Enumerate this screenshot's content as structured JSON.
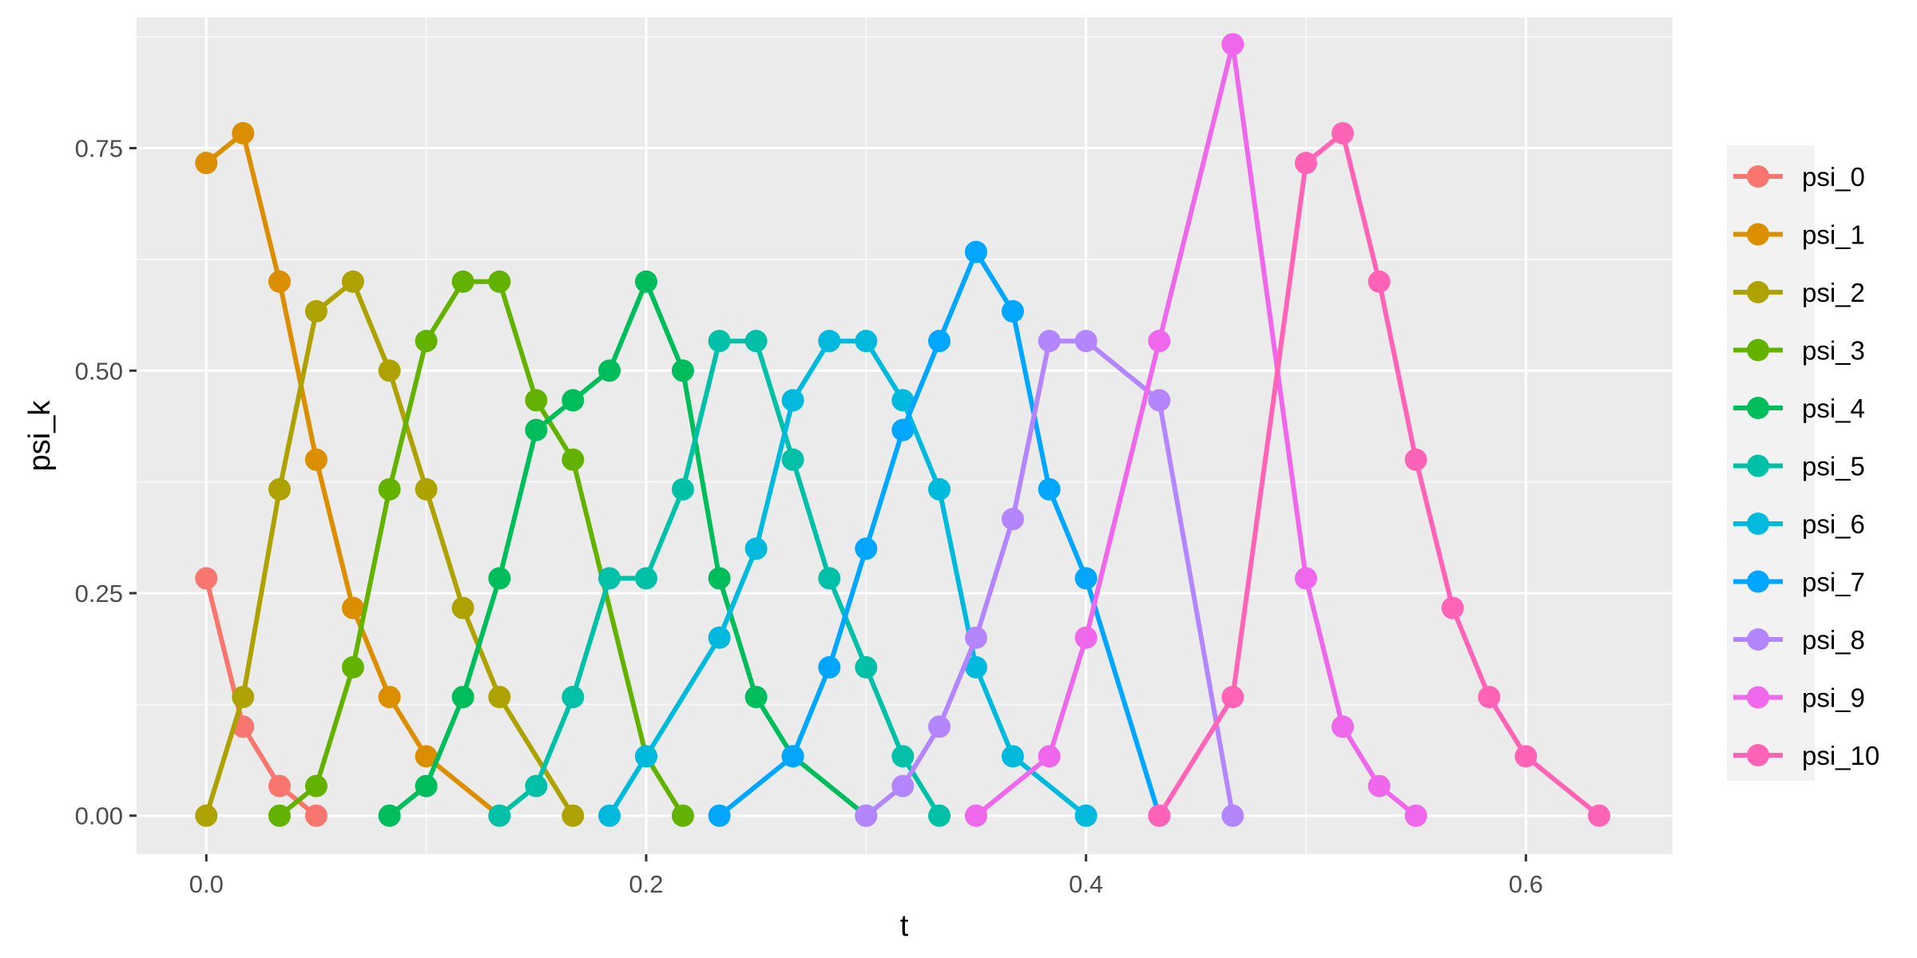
{
  "chart_data": {
    "type": "line",
    "xlabel": "t",
    "ylabel": "psi_k",
    "xlim": [
      -0.0317,
      0.6667
    ],
    "ylim": [
      -0.0433,
      0.8967
    ],
    "xticks": [
      0.0,
      0.2,
      0.4,
      0.6
    ],
    "xtick_labels": [
      "0.0",
      "0.2",
      "0.4",
      "0.6"
    ],
    "yticks": [
      0.0,
      0.25,
      0.5,
      0.75
    ],
    "ytick_labels": [
      "0.00",
      "0.25",
      "0.50",
      "0.75"
    ],
    "grid": true,
    "legend_position": "right",
    "markers": true,
    "series": [
      {
        "name": "psi_0",
        "color": "#F8766D",
        "points": [
          [
            0.0,
            0.2667
          ],
          [
            0.0167,
            0.1
          ],
          [
            0.0333,
            0.0333
          ],
          [
            0.05,
            0.0
          ]
        ]
      },
      {
        "name": "psi_1",
        "color": "#DB8E00",
        "points": [
          [
            0.0,
            0.7333
          ],
          [
            0.0167,
            0.7667
          ],
          [
            0.0333,
            0.6
          ],
          [
            0.05,
            0.4
          ],
          [
            0.0667,
            0.2333
          ],
          [
            0.0833,
            0.1333
          ],
          [
            0.1,
            0.0667
          ],
          [
            0.1333,
            0.0
          ]
        ]
      },
      {
        "name": "psi_2",
        "color": "#AEA200",
        "points": [
          [
            0.0,
            0.0
          ],
          [
            0.0167,
            0.1333
          ],
          [
            0.0333,
            0.3667
          ],
          [
            0.05,
            0.5667
          ],
          [
            0.0667,
            0.6
          ],
          [
            0.0833,
            0.5
          ],
          [
            0.1,
            0.3667
          ],
          [
            0.1167,
            0.2333
          ],
          [
            0.1333,
            0.1333
          ],
          [
            0.1667,
            0.0
          ]
        ]
      },
      {
        "name": "psi_3",
        "color": "#64B200",
        "points": [
          [
            0.0333,
            0.0
          ],
          [
            0.05,
            0.0333
          ],
          [
            0.0667,
            0.1667
          ],
          [
            0.0833,
            0.3667
          ],
          [
            0.1,
            0.5333
          ],
          [
            0.1167,
            0.6
          ],
          [
            0.1333,
            0.6
          ],
          [
            0.15,
            0.4667
          ],
          [
            0.1667,
            0.4
          ],
          [
            0.2,
            0.0667
          ],
          [
            0.2167,
            0.0
          ]
        ]
      },
      {
        "name": "psi_4",
        "color": "#00BD5C",
        "points": [
          [
            0.0833,
            0.0
          ],
          [
            0.1,
            0.0333
          ],
          [
            0.1167,
            0.1333
          ],
          [
            0.1333,
            0.2667
          ],
          [
            0.15,
            0.4333
          ],
          [
            0.1667,
            0.4667
          ],
          [
            0.1833,
            0.5
          ],
          [
            0.2,
            0.6
          ],
          [
            0.2167,
            0.5
          ],
          [
            0.2333,
            0.2667
          ],
          [
            0.25,
            0.1333
          ],
          [
            0.2667,
            0.0667
          ],
          [
            0.3,
            0.0
          ]
        ]
      },
      {
        "name": "psi_5",
        "color": "#00C1A7",
        "points": [
          [
            0.1333,
            0.0
          ],
          [
            0.15,
            0.0333
          ],
          [
            0.1667,
            0.1333
          ],
          [
            0.1833,
            0.2667
          ],
          [
            0.2,
            0.2667
          ],
          [
            0.2167,
            0.3667
          ],
          [
            0.2333,
            0.5333
          ],
          [
            0.25,
            0.5333
          ],
          [
            0.2667,
            0.4
          ],
          [
            0.2833,
            0.2667
          ],
          [
            0.3,
            0.1667
          ],
          [
            0.3167,
            0.0667
          ],
          [
            0.3333,
            0.0
          ]
        ]
      },
      {
        "name": "psi_6",
        "color": "#00BADE",
        "points": [
          [
            0.1833,
            0.0
          ],
          [
            0.2,
            0.0667
          ],
          [
            0.2333,
            0.2
          ],
          [
            0.25,
            0.3
          ],
          [
            0.2667,
            0.4667
          ],
          [
            0.2833,
            0.5333
          ],
          [
            0.3,
            0.5333
          ],
          [
            0.3167,
            0.4667
          ],
          [
            0.3333,
            0.3667
          ],
          [
            0.35,
            0.1667
          ],
          [
            0.3667,
            0.0667
          ],
          [
            0.4,
            0.0
          ]
        ]
      },
      {
        "name": "psi_7",
        "color": "#00A6FF",
        "points": [
          [
            0.2333,
            0.0
          ],
          [
            0.2667,
            0.0667
          ],
          [
            0.2833,
            0.1667
          ],
          [
            0.3,
            0.3
          ],
          [
            0.3167,
            0.4333
          ],
          [
            0.3333,
            0.5333
          ],
          [
            0.35,
            0.6333
          ],
          [
            0.3667,
            0.5667
          ],
          [
            0.3833,
            0.3667
          ],
          [
            0.4,
            0.2667
          ],
          [
            0.4333,
            0.0
          ]
        ]
      },
      {
        "name": "psi_8",
        "color": "#B385FF",
        "points": [
          [
            0.3,
            0.0
          ],
          [
            0.3167,
            0.0333
          ],
          [
            0.3333,
            0.1
          ],
          [
            0.35,
            0.2
          ],
          [
            0.3667,
            0.3333
          ],
          [
            0.3833,
            0.5333
          ],
          [
            0.4,
            0.5333
          ],
          [
            0.4333,
            0.4667
          ],
          [
            0.4667,
            0.0
          ]
        ]
      },
      {
        "name": "psi_9",
        "color": "#EF67EB",
        "points": [
          [
            0.35,
            0.0
          ],
          [
            0.3833,
            0.0667
          ],
          [
            0.4,
            0.2
          ],
          [
            0.4333,
            0.5333
          ],
          [
            0.4667,
            0.8667
          ],
          [
            0.5,
            0.2667
          ],
          [
            0.5167,
            0.1
          ],
          [
            0.5333,
            0.0333
          ],
          [
            0.55,
            0.0
          ]
        ]
      },
      {
        "name": "psi_10",
        "color": "#FF63B6",
        "points": [
          [
            0.4333,
            0.0
          ],
          [
            0.4667,
            0.1333
          ],
          [
            0.5,
            0.7333
          ],
          [
            0.5167,
            0.7667
          ],
          [
            0.5333,
            0.6
          ],
          [
            0.55,
            0.4
          ],
          [
            0.5667,
            0.2333
          ],
          [
            0.5833,
            0.1333
          ],
          [
            0.6,
            0.0667
          ],
          [
            0.6333,
            0.0
          ]
        ]
      }
    ]
  }
}
